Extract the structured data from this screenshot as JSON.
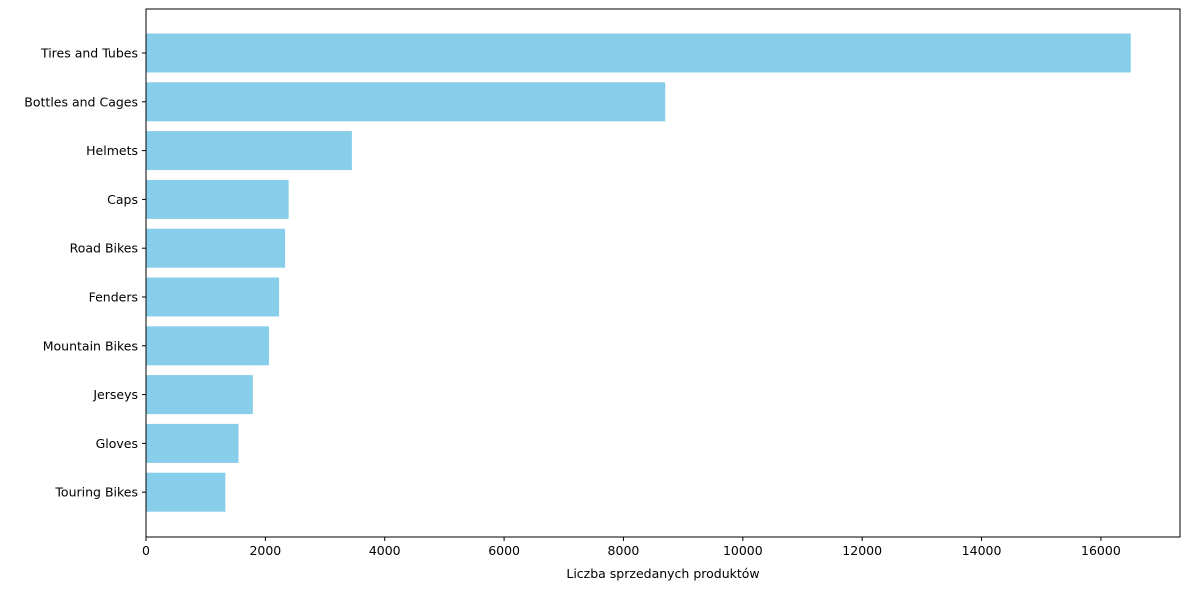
{
  "chart_data": {
    "type": "bar",
    "orientation": "horizontal",
    "categories": [
      "Tires and Tubes",
      "Bottles and Cages",
      "Helmets",
      "Caps",
      "Road Bikes",
      "Fenders",
      "Mountain Bikes",
      "Jerseys",
      "Gloves",
      "Touring Bikes"
    ],
    "values": [
      16500,
      8700,
      3450,
      2390,
      2330,
      2230,
      2060,
      1790,
      1550,
      1330
    ],
    "xlabel": "Liczba sprzedanych produktów",
    "ylabel": "",
    "title": "",
    "xlim": [
      0,
      17325
    ],
    "xticks": [
      0,
      2000,
      4000,
      6000,
      8000,
      10000,
      12000,
      14000,
      16000
    ],
    "bar_color": "#87CEEB",
    "grid": false,
    "legend": false
  }
}
